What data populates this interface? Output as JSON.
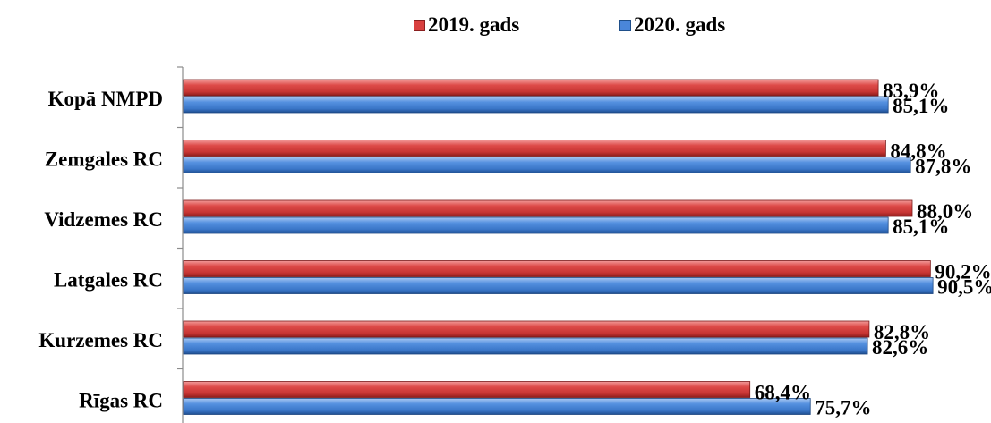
{
  "chart_data": {
    "type": "bar",
    "orientation": "horizontal",
    "categories": [
      "Kopā NMPD",
      "Zemgales RC",
      "Vidzemes RC",
      "Latgales RC",
      "Kurzemes RC",
      "Rīgas RC"
    ],
    "series": [
      {
        "name": "2019. gads",
        "color": "#d9403f",
        "values": [
          83.9,
          84.8,
          88.0,
          90.2,
          82.8,
          68.4
        ],
        "labels": [
          "83,9%",
          "84,8%",
          "88,0%",
          "90,2%",
          "82,8%",
          "68,4%"
        ]
      },
      {
        "name": "2020. gads",
        "color": "#4a86d9",
        "values": [
          85.1,
          87.8,
          85.1,
          90.5,
          82.6,
          75.7
        ],
        "labels": [
          "85,1%",
          "87,8%",
          "85,1%",
          "90,5%",
          "82,6%",
          "75,7%"
        ]
      }
    ],
    "xlim": [
      0,
      100
    ],
    "grid": false,
    "legend_position": "top"
  }
}
